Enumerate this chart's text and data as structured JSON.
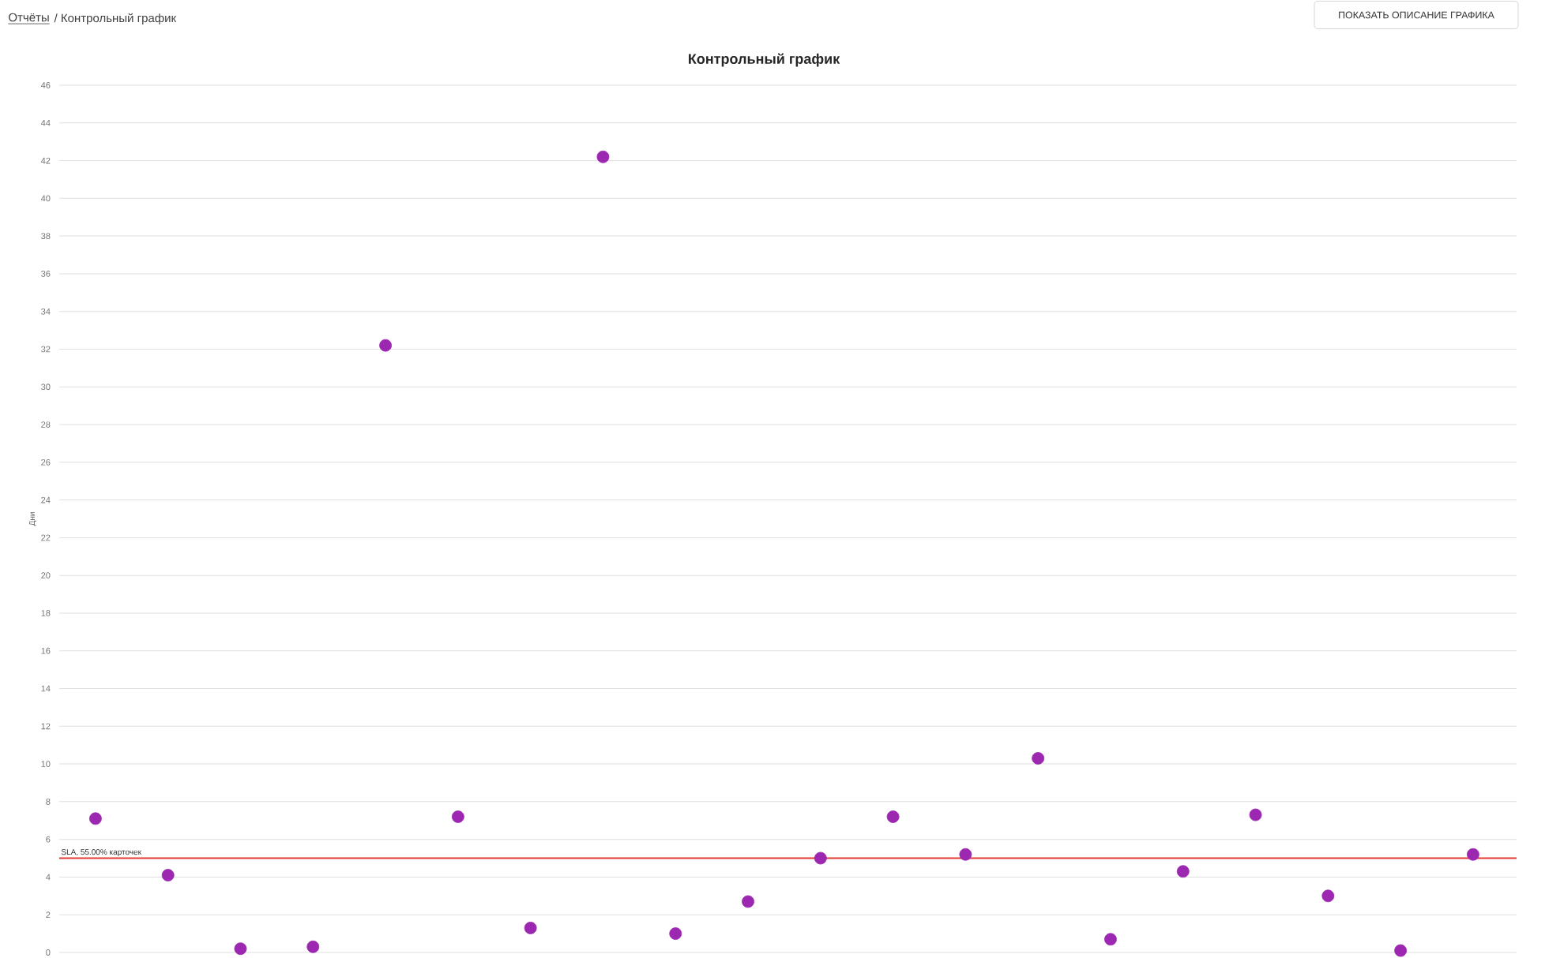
{
  "chart_data": {
    "type": "scatter",
    "title": "Контрольный график",
    "ylabel": "Дни",
    "annotations": [
      "Отчёты",
      "/ Контрольный график",
      "ПОКАЗАТЬ ОПИСАНИЕ ГРАФИКА"
    ],
    "categories": [
      null,
      null,
      null,
      null,
      null,
      null,
      null,
      null,
      null,
      null,
      null,
      null,
      null,
      null,
      null,
      null,
      null,
      null,
      null,
      null
    ],
    "series": [
      {
        "color": "#9c27b0",
        "values": [
          7.1,
          4.1,
          0.2,
          0.3,
          32.2,
          7.2,
          1.3,
          42.2,
          1.0,
          2.7,
          5.0,
          7.2,
          5.2,
          10.3,
          0.7,
          4.3,
          7.3,
          3.0,
          0.1,
          5.2
        ]
      }
    ],
    "ylim": [
      0,
      46
    ],
    "yticks": [
      0,
      2,
      4,
      6,
      8,
      10,
      12,
      14,
      16,
      18,
      20,
      22,
      24,
      26,
      28,
      30,
      32,
      34,
      36,
      38,
      40,
      42,
      44,
      46
    ],
    "ref_lines": [
      {
        "axis": "y",
        "value": 5,
        "label": "SLA, 55.00% карточек",
        "color": "#e53935"
      }
    ],
    "grid": "y",
    "marker": "circle",
    "legend": false
  }
}
